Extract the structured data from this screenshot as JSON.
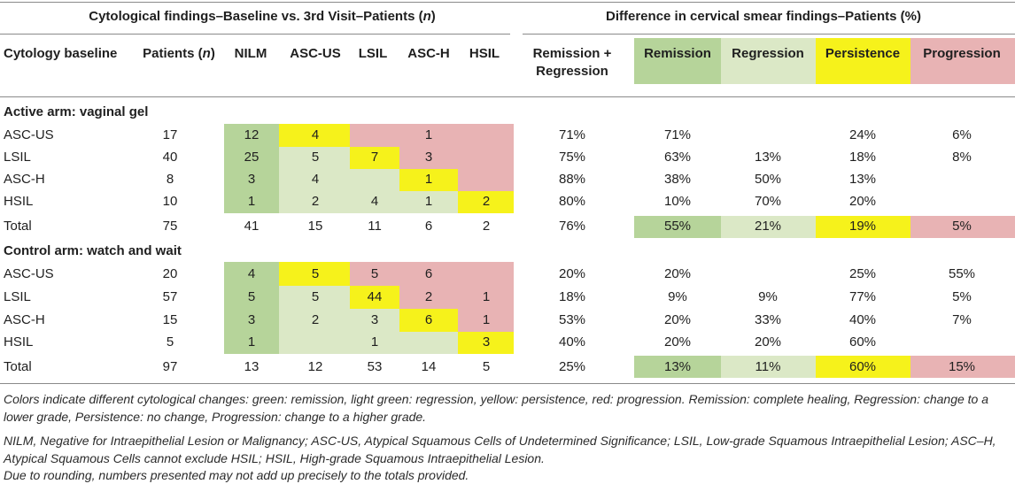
{
  "left_title": "Cytological findings–Baseline vs. 3rd Visit–Patients (",
  "left_title_n": "n",
  "left_title_end": ")",
  "right_title": "Difference in cervical smear findings–Patients (%)",
  "headers": {
    "baseline": "Cytology baseline",
    "patients": "Patients (",
    "patients_n": "n",
    "patients_end": ")",
    "nilm": "NILM",
    "ascus": "ASC-US",
    "lsil": "LSIL",
    "asch": "ASC-H",
    "hsil": "HSIL",
    "remreg_1": "Remission +",
    "remreg_2": "Regression",
    "remission": "Remission",
    "regression": "Regression",
    "persistence": "Persistence",
    "progression": "Progression"
  },
  "sections": [
    {
      "title": "Active arm: vaginal gel",
      "rows": [
        {
          "label": "ASC-US",
          "patients": "17",
          "nilm": "12",
          "ascus": "4",
          "lsil": "",
          "asch": "1",
          "hsil": "",
          "remreg": "71%",
          "remission": "71%",
          "regression": "",
          "persistence": "24%",
          "progression": "6%"
        },
        {
          "label": "LSIL",
          "patients": "40",
          "nilm": "25",
          "ascus": "5",
          "lsil": "7",
          "asch": "3",
          "hsil": "",
          "remreg": "75%",
          "remission": "63%",
          "regression": "13%",
          "persistence": "18%",
          "progression": "8%"
        },
        {
          "label": "ASC-H",
          "patients": "8",
          "nilm": "3",
          "ascus": "4",
          "lsil": "",
          "asch": "1",
          "hsil": "",
          "remreg": "88%",
          "remission": "38%",
          "regression": "50%",
          "persistence": "13%",
          "progression": ""
        },
        {
          "label": "HSIL",
          "patients": "10",
          "nilm": "1",
          "ascus": "2",
          "lsil": "4",
          "asch": "1",
          "hsil": "2",
          "remreg": "80%",
          "remission": "10%",
          "regression": "70%",
          "persistence": "20%",
          "progression": ""
        },
        {
          "label": "Total",
          "patients": "75",
          "nilm": "41",
          "ascus": "15",
          "lsil": "11",
          "asch": "6",
          "hsil": "2",
          "remreg": "76%",
          "remission": "55%",
          "regression": "21%",
          "persistence": "19%",
          "progression": "5%"
        }
      ]
    },
    {
      "title": "Control arm: watch and wait",
      "rows": [
        {
          "label": "ASC-US",
          "patients": "20",
          "nilm": "4",
          "ascus": "5",
          "lsil": "5",
          "asch": "6",
          "hsil": "",
          "remreg": "20%",
          "remission": "20%",
          "regression": "",
          "persistence": "25%",
          "progression": "55%"
        },
        {
          "label": "LSIL",
          "patients": "57",
          "nilm": "5",
          "ascus": "5",
          "lsil": "44",
          "asch": "2",
          "hsil": "1",
          "remreg": "18%",
          "remission": "9%",
          "regression": "9%",
          "persistence": "77%",
          "progression": "5%"
        },
        {
          "label": "ASC-H",
          "patients": "15",
          "nilm": "3",
          "ascus": "2",
          "lsil": "3",
          "asch": "6",
          "hsil": "1",
          "remreg": "53%",
          "remission": "20%",
          "regression": "33%",
          "persistence": "40%",
          "progression": "7%"
        },
        {
          "label": "HSIL",
          "patients": "5",
          "nilm": "1",
          "ascus": "",
          "lsil": "1",
          "asch": "",
          "hsil": "3",
          "remreg": "40%",
          "remission": "20%",
          "regression": "20%",
          "persistence": "60%",
          "progression": ""
        },
        {
          "label": "Total",
          "patients": "97",
          "nilm": "13",
          "ascus": "12",
          "lsil": "53",
          "asch": "14",
          "hsil": "5",
          "remreg": "25%",
          "remission": "13%",
          "regression": "11%",
          "persistence": "60%",
          "progression": "15%"
        }
      ]
    }
  ],
  "footnotes": [
    "Colors indicate different cytological changes: green: remission, light green: regression, yellow: persistence, red: progression. Remission: complete healing, Regression: change to a",
    "lower grade, Persistence: no change, Progression: change to a higher grade.",
    "NILM, Negative for Intraepithelial Lesion or Malignancy; ASC-US, Atypical Squamous Cells of Undetermined Significance; LSIL, Low-grade Squamous Intraepithelial Lesion; ASC–H,",
    "Atypical Squamous Cells cannot exclude HSIL; HSIL, High-grade Squamous Intraepithelial Lesion.",
    "Due to rounding, numbers presented may not add up precisely to the totals provided."
  ],
  "colors": {
    "remission": "#b6d49a",
    "regression": "#dbe8c6",
    "persistence": "#f6f21b",
    "progression": "#e8b3b4"
  }
}
